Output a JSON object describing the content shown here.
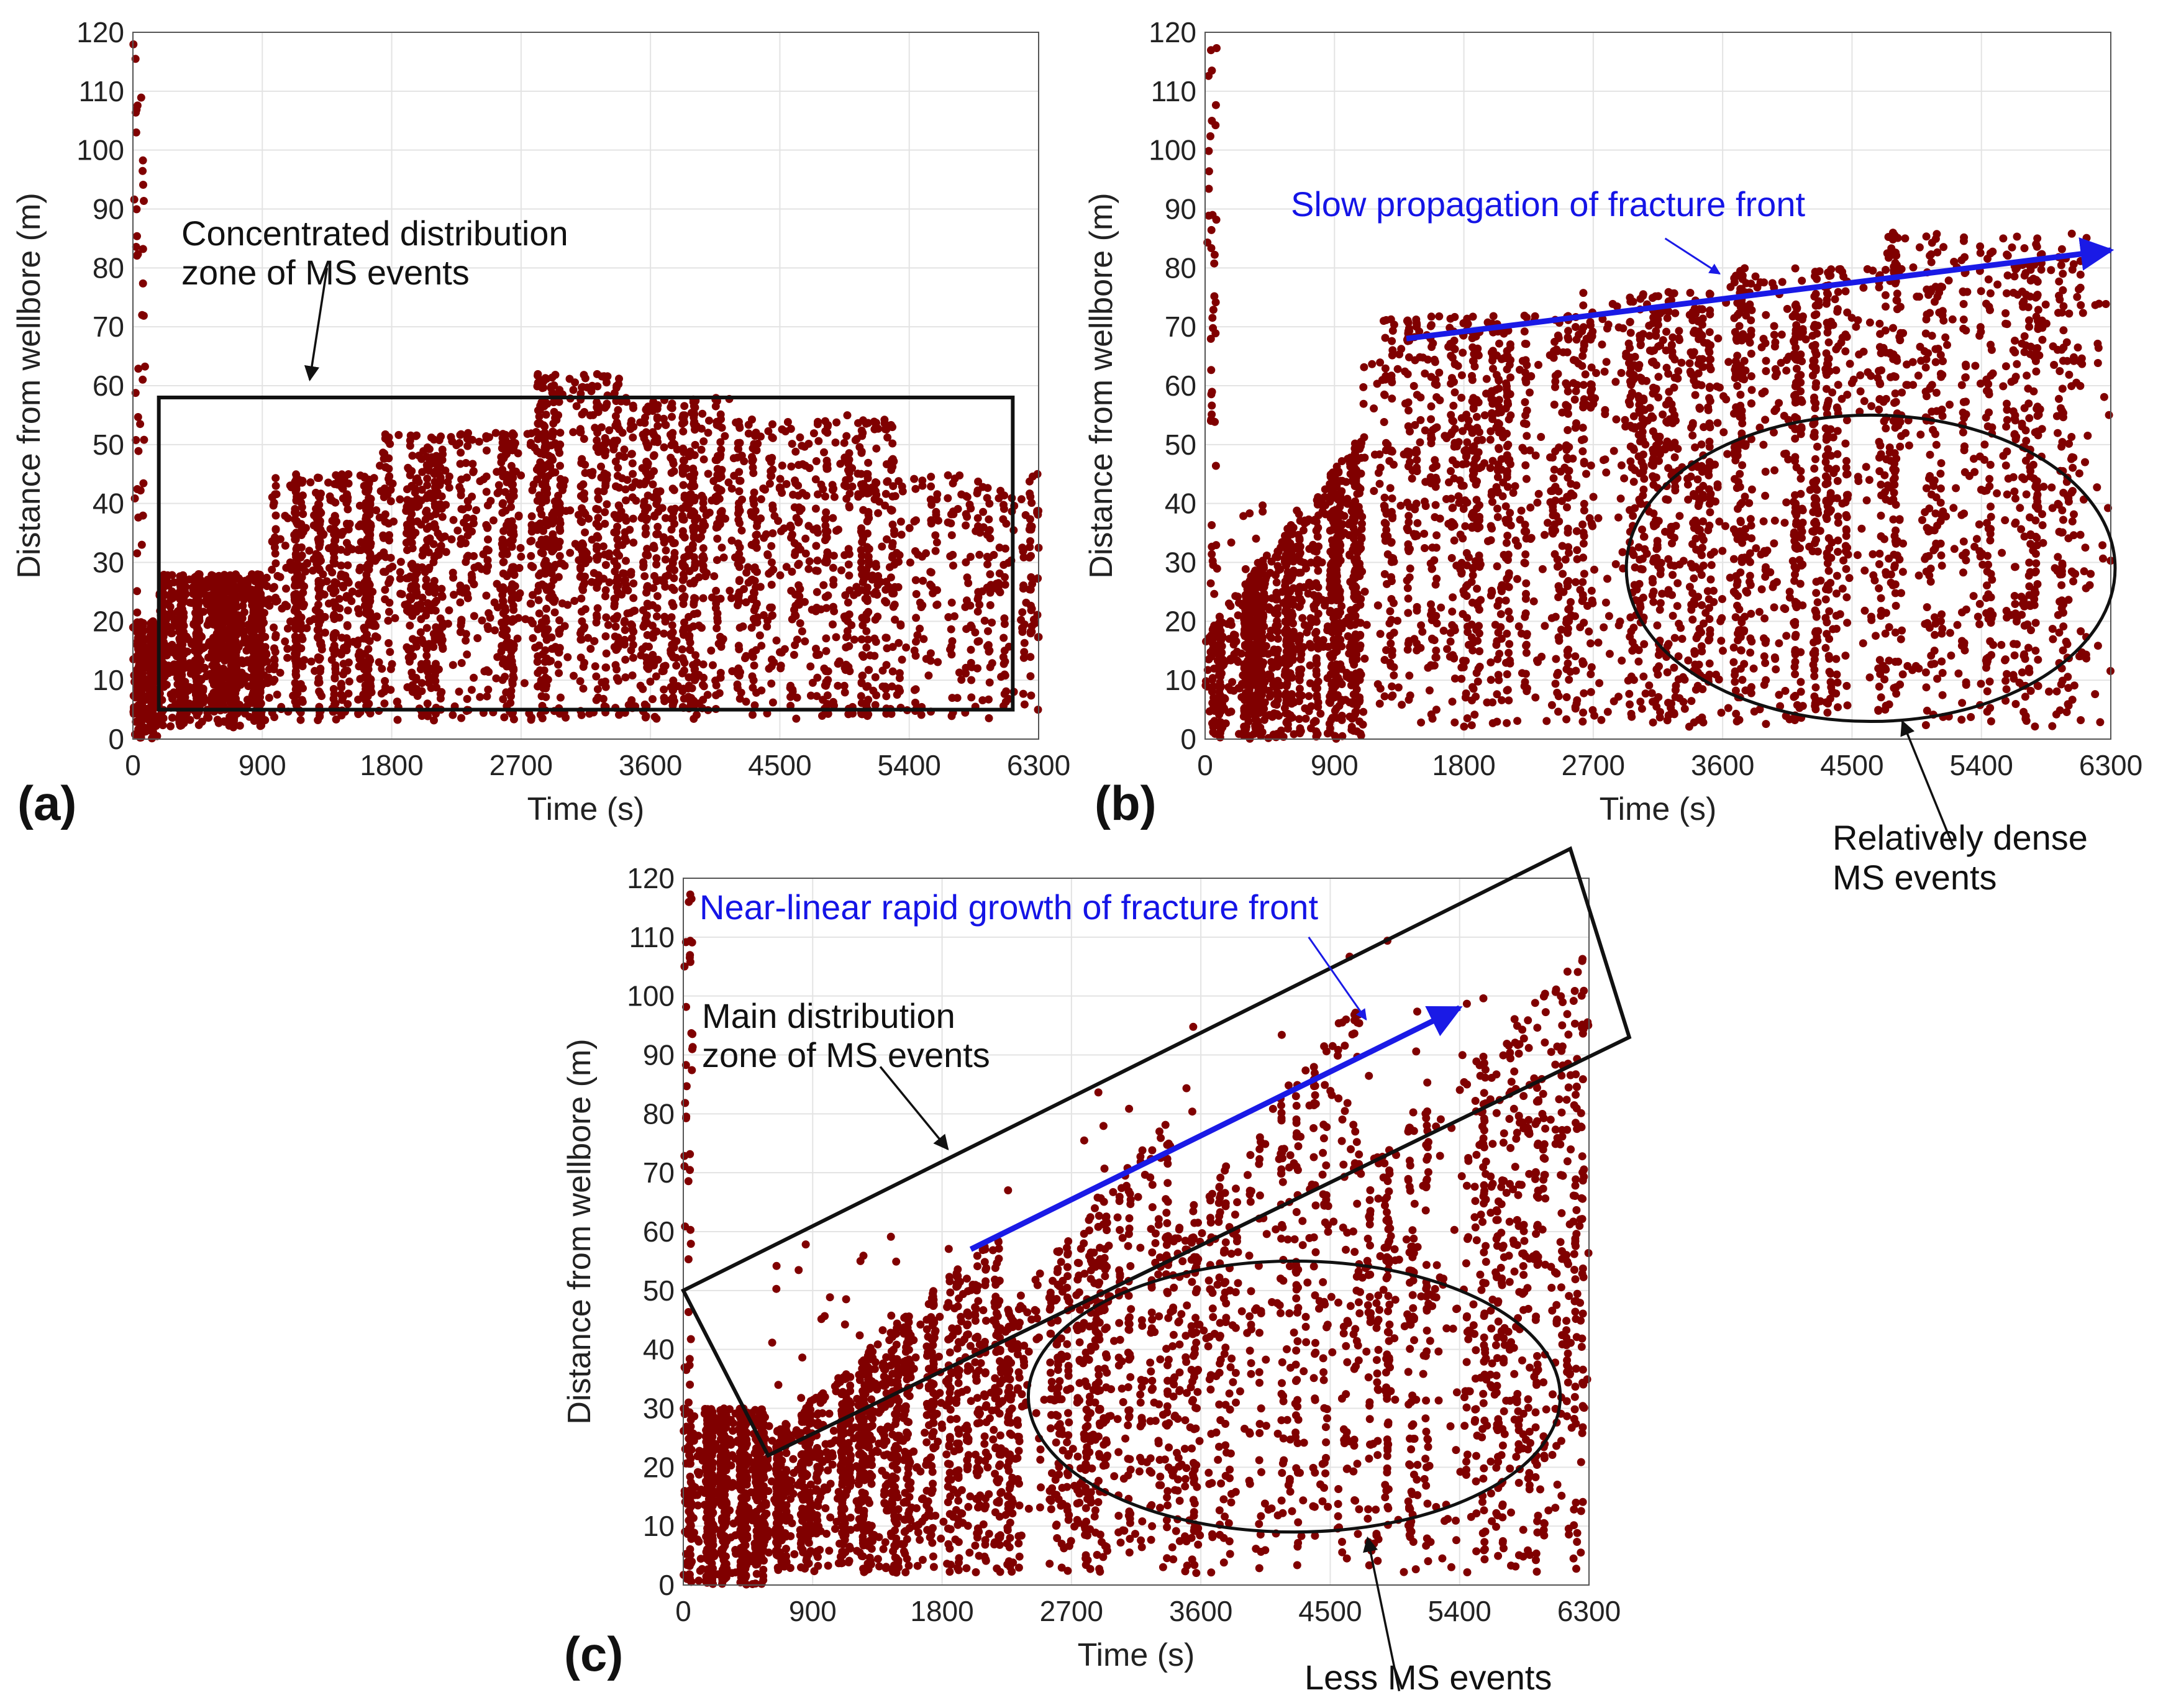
{
  "figure": {
    "marker_color": "#800000",
    "arrow_blue": "#1a1ae6",
    "annotation_black": "#111111"
  },
  "chart_data": [
    {
      "id": "a",
      "type": "scatter",
      "panel_label": "(a)",
      "xlabel": "Time (s)",
      "ylabel": "Distance from wellbore (m)",
      "xlim": [
        0,
        6300
      ],
      "ylim": [
        0,
        120
      ],
      "xticks": [
        0,
        900,
        1800,
        2700,
        3600,
        4500,
        5400,
        6300
      ],
      "yticks": [
        0,
        10,
        20,
        30,
        40,
        50,
        60,
        70,
        80,
        90,
        100,
        110,
        120
      ],
      "grid": true,
      "series_name": "MS events",
      "annotations": {
        "box_text_1": "Concentrated distribution",
        "box_text_2": "zone of MS events",
        "box_time": [
          180,
          6120
        ],
        "box_distance": [
          5,
          58
        ],
        "arrow_from": [
          1350,
          80
        ],
        "arrow_to": [
          1230,
          61
        ]
      },
      "segments": [
        {
          "t": [
            0,
            180
          ],
          "d": [
            0,
            20
          ],
          "n": 520
        },
        {
          "t": [
            180,
            950
          ],
          "d": [
            2,
            28
          ],
          "n": 1400
        },
        {
          "t": [
            950,
            1700
          ],
          "d": [
            3,
            45
          ],
          "n": 650
        },
        {
          "t": [
            1700,
            2800
          ],
          "d": [
            3,
            52
          ],
          "n": 700
        },
        {
          "t": [
            2800,
            3400
          ],
          "d": [
            3,
            62
          ],
          "n": 520
        },
        {
          "t": [
            3400,
            4200
          ],
          "d": [
            3,
            58
          ],
          "n": 600
        },
        {
          "t": [
            4200,
            5300
          ],
          "d": [
            3,
            55
          ],
          "n": 620
        },
        {
          "t": [
            5300,
            6300
          ],
          "d": [
            3,
            45
          ],
          "n": 300
        },
        {
          "t": [
            0,
            80
          ],
          "d": [
            20,
            118
          ],
          "n": 40
        }
      ]
    },
    {
      "id": "b",
      "type": "scatter",
      "panel_label": "(b)",
      "xlabel": "Time (s)",
      "ylabel": "Distance from wellbore (m)",
      "xlim": [
        0,
        6300
      ],
      "ylim": [
        0,
        120
      ],
      "xticks": [
        0,
        900,
        1800,
        2700,
        3600,
        4500,
        5400,
        6300
      ],
      "yticks": [
        0,
        10,
        20,
        30,
        40,
        50,
        60,
        70,
        80,
        90,
        100,
        110,
        120
      ],
      "grid": true,
      "series_name": "MS events",
      "annotations": {
        "blue_text": "Slow propagation of fracture front",
        "blue_line_from": [
          1400,
          68
        ],
        "blue_line_to": [
          6300,
          83
        ],
        "blue_pointer_from": [
          3200,
          85
        ],
        "blue_pointer_to": [
          3580,
          79
        ],
        "ellipse_center": [
          4630,
          29
        ],
        "ellipse_radius": [
          1700,
          26
        ],
        "ellipse_text_1": "Relatively dense",
        "ellipse_text_2": "MS events",
        "ellipse_pointer_from": [
          5200,
          -18
        ],
        "ellipse_pointer_to": [
          4850,
          3
        ]
      },
      "segments": [
        {
          "t": [
            0,
            1100
          ],
          "d": [
            0,
            40
          ],
          "trend_start": 18,
          "trend_end": 52,
          "n": 1300
        },
        {
          "t": [
            1100,
            2600
          ],
          "d": [
            2,
            72
          ],
          "n": 900
        },
        {
          "t": [
            2600,
            3600
          ],
          "d": [
            2,
            76
          ],
          "n": 700
        },
        {
          "t": [
            3600,
            4700
          ],
          "d": [
            2,
            80
          ],
          "n": 750
        },
        {
          "t": [
            4700,
            6300
          ],
          "d": [
            2,
            86
          ],
          "n": 850
        },
        {
          "t": [
            0,
            80
          ],
          "d": [
            20,
            118
          ],
          "n": 40
        }
      ]
    },
    {
      "id": "c",
      "type": "scatter",
      "panel_label": "(c)",
      "xlabel": "Time (s)",
      "ylabel": "Distance from wellbore (m)",
      "xlim": [
        0,
        6300
      ],
      "ylim": [
        0,
        120
      ],
      "xticks": [
        0,
        900,
        1800,
        2700,
        3600,
        4500,
        5400,
        6300
      ],
      "yticks": [
        0,
        10,
        20,
        30,
        40,
        50,
        60,
        70,
        80,
        90,
        100,
        110,
        120
      ],
      "grid": true,
      "series_name": "MS events",
      "annotations": {
        "blue_text": "Near-linear rapid growth of fracture front",
        "blue_line_from": [
          2000,
          57
        ],
        "blue_line_to": [
          5400,
          98
        ],
        "blue_pointer_from": [
          4350,
          110
        ],
        "blue_pointer_to": [
          4750,
          96
        ],
        "box_text_1": "Main distribution",
        "box_text_2": "zone of MS events",
        "box_corners": [
          [
            0,
            50
          ],
          [
            6170,
            125
          ],
          [
            6580,
            93
          ],
          [
            590,
            22
          ]
        ],
        "box_pointer_from": [
          1370,
          88
        ],
        "box_pointer_to": [
          1840,
          74
        ],
        "ellipse_center": [
          4250,
          32
        ],
        "ellipse_radius": [
          1850,
          23
        ],
        "ellipse_text": "Less MS events",
        "ellipse_pointer_from": [
          4980,
          -18
        ],
        "ellipse_pointer_to": [
          4760,
          8
        ]
      },
      "segments": [
        {
          "t": [
            0,
            600
          ],
          "d": [
            0,
            30
          ],
          "n": 900
        },
        {
          "t": [
            600,
            2200
          ],
          "d": [
            2,
            60
          ],
          "trend_start": 25,
          "trend_end": 60,
          "n": 1400
        },
        {
          "t": [
            2200,
            3400
          ],
          "d": [
            2,
            85
          ],
          "trend_start": 45,
          "trend_end": 80,
          "n": 700
        },
        {
          "t": [
            3400,
            4700
          ],
          "d": [
            2,
            108
          ],
          "trend_start": 60,
          "trend_end": 100,
          "n": 600
        },
        {
          "t": [
            4700,
            6300
          ],
          "d": [
            2,
            112
          ],
          "trend_start": 70,
          "trend_end": 108,
          "n": 900
        },
        {
          "t": [
            0,
            80
          ],
          "d": [
            20,
            120
          ],
          "n": 40
        }
      ]
    }
  ]
}
